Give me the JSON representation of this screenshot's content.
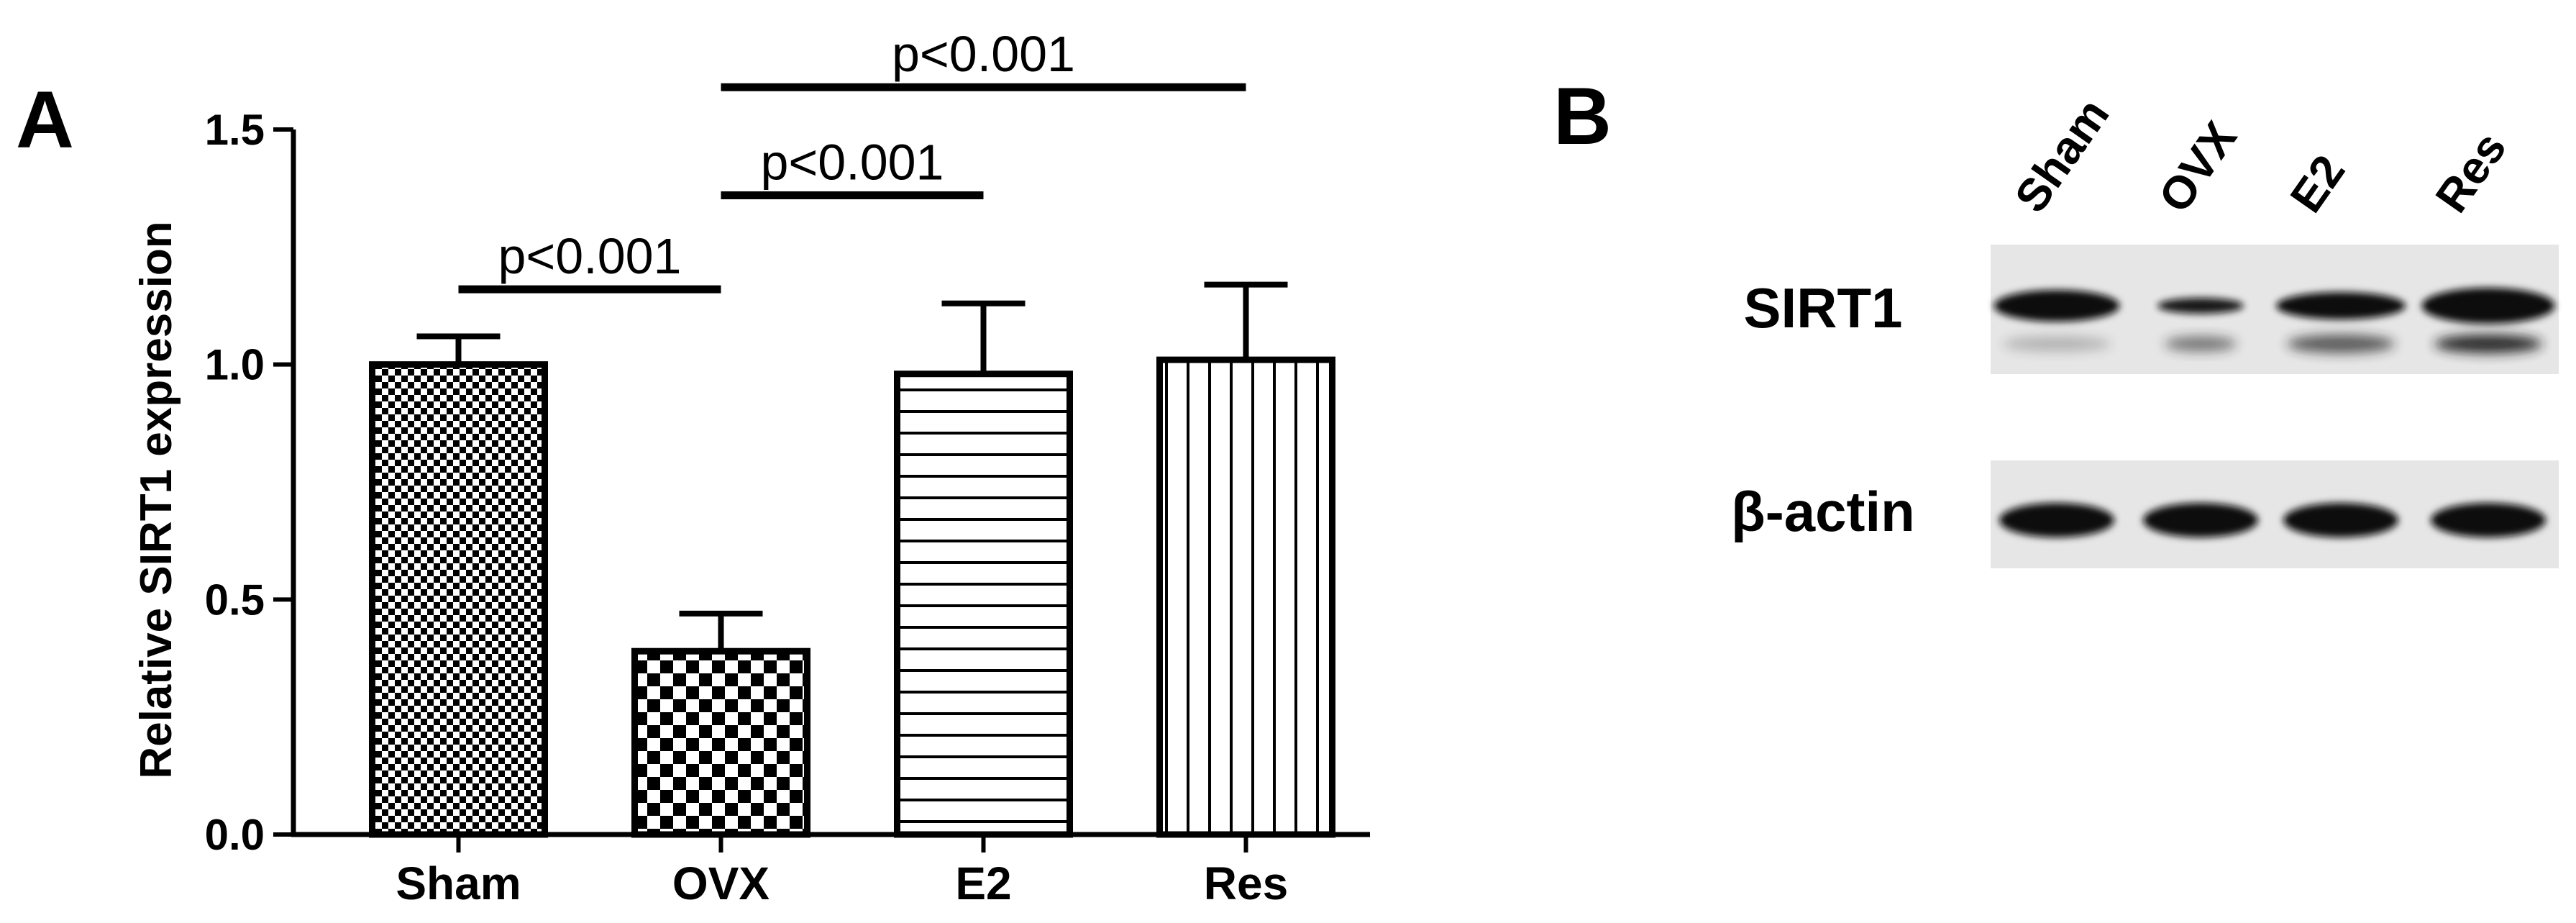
{
  "panels": {
    "a": "A",
    "b": "B"
  },
  "chart_data": {
    "type": "bar",
    "title": "",
    "xlabel": "",
    "ylabel": "Relative SIRT1 expression",
    "ylim": [
      0,
      1.5
    ],
    "yticks": [
      "0.0",
      "0.5",
      "1.0",
      "1.5"
    ],
    "categories": [
      "Sham",
      "OVX",
      "E2",
      "Res"
    ],
    "values": [
      1.0,
      0.39,
      0.98,
      1.01
    ],
    "errors": [
      0.06,
      0.08,
      0.15,
      0.16
    ],
    "patterns": [
      "fine-checker",
      "coarse-checker",
      "horizontal-lines",
      "vertical-lines"
    ],
    "significance": [
      {
        "from": 0,
        "to": 1,
        "label": "p<0.001",
        "level": 1.16
      },
      {
        "from": 1,
        "to": 2,
        "label": "p<0.001",
        "level": 1.36
      },
      {
        "from": 1,
        "to": 3,
        "label": "p<0.001",
        "level": 1.59
      }
    ],
    "grid": false,
    "legend": "none"
  },
  "blot": {
    "lanes": [
      "Sham",
      "OVX",
      "E2",
      "Res"
    ],
    "rows": [
      {
        "label": "SIRT1"
      },
      {
        "label": "β-actin"
      }
    ]
  }
}
